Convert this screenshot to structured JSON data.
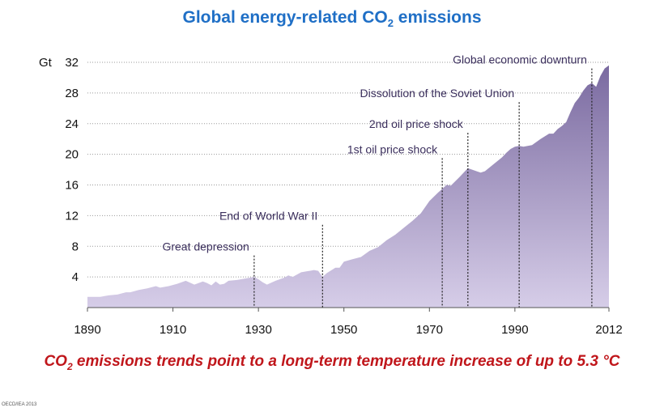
{
  "header": {
    "title_prefix": "Global energy-related CO",
    "title_sub": "2",
    "title_suffix": " emissions"
  },
  "footer": {
    "caption_prefix": "CO",
    "caption_sub": "2",
    "caption_suffix": " emissions trends point to a long-term temperature increase of up to 5.3 °C",
    "copyright": "OECD/IEA 2013"
  },
  "colors": {
    "title": "#1f6fc6",
    "caption": "#c0161b",
    "area_top": "#7a6aa0",
    "area_bottom": "#d6cde8",
    "annotation_text": "#3a2e5c"
  },
  "chart_data": {
    "type": "area",
    "title": "Global energy-related CO2 emissions",
    "ylabel": "Gt",
    "xlim": [
      1890,
      2012
    ],
    "ylim": [
      0,
      32
    ],
    "x_ticks": [
      1890,
      1910,
      1930,
      1950,
      1970,
      1990,
      2012
    ],
    "y_ticks": [
      4,
      8,
      12,
      16,
      20,
      24,
      28,
      32
    ],
    "grid": "horizontal",
    "series": [
      {
        "points": [
          [
            1890,
            1.4
          ],
          [
            1893,
            1.4
          ],
          [
            1895,
            1.6
          ],
          [
            1897,
            1.7
          ],
          [
            1899,
            2.0
          ],
          [
            1900,
            2.0
          ],
          [
            1902,
            2.3
          ],
          [
            1904,
            2.5
          ],
          [
            1906,
            2.8
          ],
          [
            1907,
            2.6
          ],
          [
            1909,
            2.8
          ],
          [
            1911,
            3.1
          ],
          [
            1913,
            3.5
          ],
          [
            1915,
            3.0
          ],
          [
            1917,
            3.4
          ],
          [
            1918,
            3.2
          ],
          [
            1919,
            2.9
          ],
          [
            1920,
            3.4
          ],
          [
            1921,
            3.0
          ],
          [
            1922,
            3.1
          ],
          [
            1923,
            3.5
          ],
          [
            1925,
            3.6
          ],
          [
            1927,
            3.8
          ],
          [
            1929,
            4.0
          ],
          [
            1930,
            3.7
          ],
          [
            1931,
            3.3
          ],
          [
            1932,
            3.0
          ],
          [
            1934,
            3.5
          ],
          [
            1936,
            3.9
          ],
          [
            1937,
            4.2
          ],
          [
            1938,
            4.0
          ],
          [
            1940,
            4.6
          ],
          [
            1942,
            4.8
          ],
          [
            1943,
            4.9
          ],
          [
            1944,
            4.8
          ],
          [
            1945,
            4.0
          ],
          [
            1946,
            4.5
          ],
          [
            1948,
            5.2
          ],
          [
            1949,
            5.2
          ],
          [
            1950,
            6.0
          ],
          [
            1952,
            6.3
          ],
          [
            1954,
            6.6
          ],
          [
            1956,
            7.4
          ],
          [
            1958,
            7.9
          ],
          [
            1960,
            8.8
          ],
          [
            1962,
            9.5
          ],
          [
            1964,
            10.4
          ],
          [
            1966,
            11.3
          ],
          [
            1968,
            12.3
          ],
          [
            1970,
            13.9
          ],
          [
            1972,
            15.0
          ],
          [
            1974,
            16.0
          ],
          [
            1975,
            15.9
          ],
          [
            1977,
            17.0
          ],
          [
            1979,
            18.2
          ],
          [
            1980,
            18.0
          ],
          [
            1981,
            17.8
          ],
          [
            1982,
            17.6
          ],
          [
            1983,
            17.8
          ],
          [
            1985,
            18.7
          ],
          [
            1987,
            19.6
          ],
          [
            1988,
            20.2
          ],
          [
            1989,
            20.7
          ],
          [
            1990,
            21.0
          ],
          [
            1991,
            21.1
          ],
          [
            1992,
            21.0
          ],
          [
            1994,
            21.2
          ],
          [
            1996,
            22.0
          ],
          [
            1998,
            22.7
          ],
          [
            1999,
            22.7
          ],
          [
            2000,
            23.3
          ],
          [
            2001,
            23.7
          ],
          [
            2002,
            24.2
          ],
          [
            2003,
            25.5
          ],
          [
            2004,
            26.7
          ],
          [
            2005,
            27.4
          ],
          [
            2006,
            28.3
          ],
          [
            2007,
            29.0
          ],
          [
            2008,
            29.3
          ],
          [
            2009,
            28.8
          ],
          [
            2010,
            30.2
          ],
          [
            2011,
            31.2
          ],
          [
            2012,
            31.6
          ]
        ]
      }
    ],
    "annotations": [
      {
        "label": "Great depression",
        "x": 1929,
        "y_top": 6.8
      },
      {
        "label": "End of World War II",
        "x": 1945,
        "y_top": 10.8
      },
      {
        "label": "1st oil price shock",
        "x": 1973,
        "y_top": 19.5
      },
      {
        "label": "2nd oil price shock",
        "x": 1979,
        "y_top": 22.8
      },
      {
        "label": "Dissolution of the Soviet Union",
        "x": 1991,
        "y_top": 26.8
      },
      {
        "label": "Global economic downturn",
        "x": 2008,
        "y_top": 31.2
      }
    ]
  }
}
